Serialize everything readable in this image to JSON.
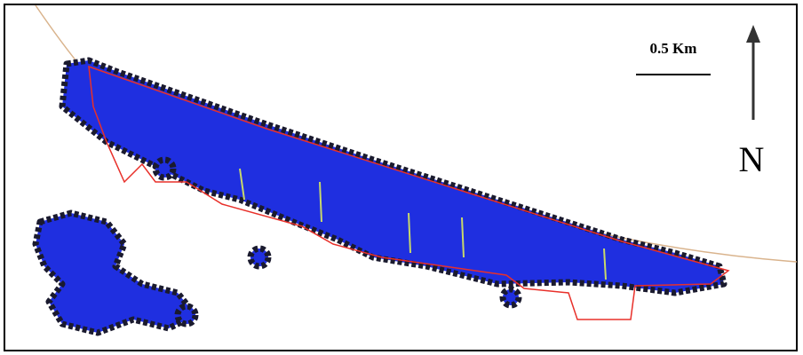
{
  "scale_bar": {
    "label": "0.5 Km"
  },
  "north_arrow": {
    "label": "N"
  }
}
